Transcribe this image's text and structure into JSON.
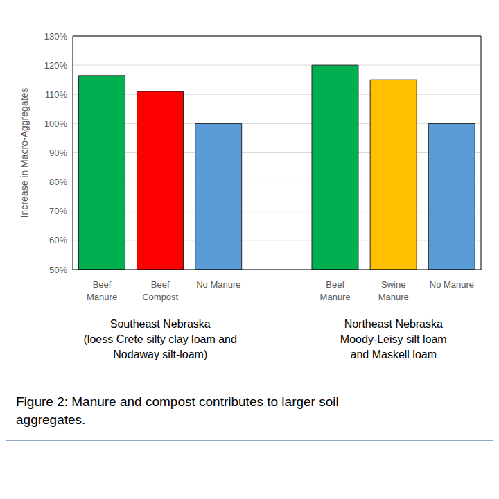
{
  "chart_data": {
    "type": "bar",
    "y_label": "Increase in Macro-Aggregates",
    "caption": "Figure 2:  Manure and compost contributes to larger soil\naggregates.",
    "ylim": [
      50,
      130
    ],
    "yticks": [
      {
        "value": 50,
        "label": "50%"
      },
      {
        "value": 60,
        "label": "60%"
      },
      {
        "value": 70,
        "label": "70%"
      },
      {
        "value": 80,
        "label": "80%"
      },
      {
        "value": 90,
        "label": "90%"
      },
      {
        "value": 100,
        "label": "100%"
      },
      {
        "value": 110,
        "label": "110%"
      },
      {
        "value": 120,
        "label": "120%"
      },
      {
        "value": 130,
        "label": "130%"
      }
    ],
    "grid": true,
    "groups": [
      {
        "label": "Southeast Nebraska\n(loess Crete silty clay loam and\nNodaway silt-loam)",
        "categories": [
          "Beef\nManure",
          "Beef\nCompost",
          "No Manure"
        ],
        "values": [
          116.5,
          111,
          100
        ],
        "colors": [
          "#00b050",
          "#ff0000",
          "#5b9bd5"
        ]
      },
      {
        "label": "Northeast Nebraska\nMoody-Leisy silt loam\nand Maskell loam",
        "categories": [
          "Beef\nManure",
          "Swine\nManure",
          "No Manure"
        ],
        "values": [
          120,
          115,
          100
        ],
        "colors": [
          "#00b050",
          "#ffc000",
          "#5b9bd5"
        ]
      }
    ]
  }
}
